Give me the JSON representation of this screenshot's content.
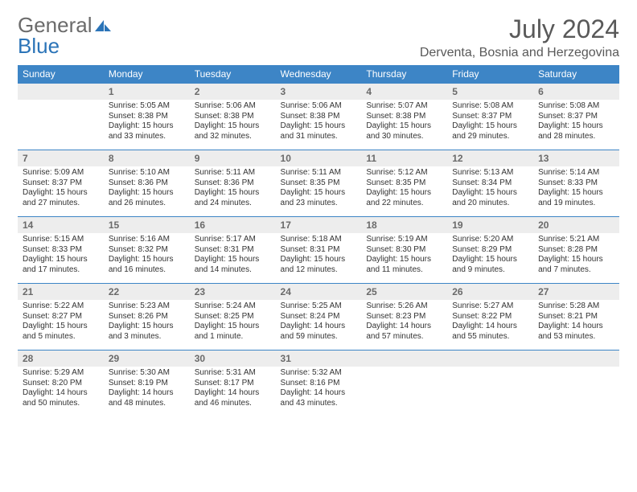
{
  "logo": {
    "word1": "General",
    "word2": "Blue"
  },
  "title": "July 2024",
  "location": "Derventa, Bosnia and Herzegovina",
  "colors": {
    "header_bg": "#3d85c6",
    "header_text": "#ffffff",
    "daynum_bg": "#ededed",
    "daynum_text": "#6a6a6a",
    "border": "#3d85c6",
    "body_text": "#333333",
    "title_text": "#595959",
    "logo_gray": "#6b6b6b",
    "logo_blue": "#2b74b8"
  },
  "days": [
    "Sunday",
    "Monday",
    "Tuesday",
    "Wednesday",
    "Thursday",
    "Friday",
    "Saturday"
  ],
  "weeks": [
    [
      {
        "n": "",
        "l": [
          "",
          "",
          "",
          ""
        ]
      },
      {
        "n": "1",
        "l": [
          "Sunrise: 5:05 AM",
          "Sunset: 8:38 PM",
          "Daylight: 15 hours",
          "and 33 minutes."
        ]
      },
      {
        "n": "2",
        "l": [
          "Sunrise: 5:06 AM",
          "Sunset: 8:38 PM",
          "Daylight: 15 hours",
          "and 32 minutes."
        ]
      },
      {
        "n": "3",
        "l": [
          "Sunrise: 5:06 AM",
          "Sunset: 8:38 PM",
          "Daylight: 15 hours",
          "and 31 minutes."
        ]
      },
      {
        "n": "4",
        "l": [
          "Sunrise: 5:07 AM",
          "Sunset: 8:38 PM",
          "Daylight: 15 hours",
          "and 30 minutes."
        ]
      },
      {
        "n": "5",
        "l": [
          "Sunrise: 5:08 AM",
          "Sunset: 8:37 PM",
          "Daylight: 15 hours",
          "and 29 minutes."
        ]
      },
      {
        "n": "6",
        "l": [
          "Sunrise: 5:08 AM",
          "Sunset: 8:37 PM",
          "Daylight: 15 hours",
          "and 28 minutes."
        ]
      }
    ],
    [
      {
        "n": "7",
        "l": [
          "Sunrise: 5:09 AM",
          "Sunset: 8:37 PM",
          "Daylight: 15 hours",
          "and 27 minutes."
        ]
      },
      {
        "n": "8",
        "l": [
          "Sunrise: 5:10 AM",
          "Sunset: 8:36 PM",
          "Daylight: 15 hours",
          "and 26 minutes."
        ]
      },
      {
        "n": "9",
        "l": [
          "Sunrise: 5:11 AM",
          "Sunset: 8:36 PM",
          "Daylight: 15 hours",
          "and 24 minutes."
        ]
      },
      {
        "n": "10",
        "l": [
          "Sunrise: 5:11 AM",
          "Sunset: 8:35 PM",
          "Daylight: 15 hours",
          "and 23 minutes."
        ]
      },
      {
        "n": "11",
        "l": [
          "Sunrise: 5:12 AM",
          "Sunset: 8:35 PM",
          "Daylight: 15 hours",
          "and 22 minutes."
        ]
      },
      {
        "n": "12",
        "l": [
          "Sunrise: 5:13 AM",
          "Sunset: 8:34 PM",
          "Daylight: 15 hours",
          "and 20 minutes."
        ]
      },
      {
        "n": "13",
        "l": [
          "Sunrise: 5:14 AM",
          "Sunset: 8:33 PM",
          "Daylight: 15 hours",
          "and 19 minutes."
        ]
      }
    ],
    [
      {
        "n": "14",
        "l": [
          "Sunrise: 5:15 AM",
          "Sunset: 8:33 PM",
          "Daylight: 15 hours",
          "and 17 minutes."
        ]
      },
      {
        "n": "15",
        "l": [
          "Sunrise: 5:16 AM",
          "Sunset: 8:32 PM",
          "Daylight: 15 hours",
          "and 16 minutes."
        ]
      },
      {
        "n": "16",
        "l": [
          "Sunrise: 5:17 AM",
          "Sunset: 8:31 PM",
          "Daylight: 15 hours",
          "and 14 minutes."
        ]
      },
      {
        "n": "17",
        "l": [
          "Sunrise: 5:18 AM",
          "Sunset: 8:31 PM",
          "Daylight: 15 hours",
          "and 12 minutes."
        ]
      },
      {
        "n": "18",
        "l": [
          "Sunrise: 5:19 AM",
          "Sunset: 8:30 PM",
          "Daylight: 15 hours",
          "and 11 minutes."
        ]
      },
      {
        "n": "19",
        "l": [
          "Sunrise: 5:20 AM",
          "Sunset: 8:29 PM",
          "Daylight: 15 hours",
          "and 9 minutes."
        ]
      },
      {
        "n": "20",
        "l": [
          "Sunrise: 5:21 AM",
          "Sunset: 8:28 PM",
          "Daylight: 15 hours",
          "and 7 minutes."
        ]
      }
    ],
    [
      {
        "n": "21",
        "l": [
          "Sunrise: 5:22 AM",
          "Sunset: 8:27 PM",
          "Daylight: 15 hours",
          "and 5 minutes."
        ]
      },
      {
        "n": "22",
        "l": [
          "Sunrise: 5:23 AM",
          "Sunset: 8:26 PM",
          "Daylight: 15 hours",
          "and 3 minutes."
        ]
      },
      {
        "n": "23",
        "l": [
          "Sunrise: 5:24 AM",
          "Sunset: 8:25 PM",
          "Daylight: 15 hours",
          "and 1 minute."
        ]
      },
      {
        "n": "24",
        "l": [
          "Sunrise: 5:25 AM",
          "Sunset: 8:24 PM",
          "Daylight: 14 hours",
          "and 59 minutes."
        ]
      },
      {
        "n": "25",
        "l": [
          "Sunrise: 5:26 AM",
          "Sunset: 8:23 PM",
          "Daylight: 14 hours",
          "and 57 minutes."
        ]
      },
      {
        "n": "26",
        "l": [
          "Sunrise: 5:27 AM",
          "Sunset: 8:22 PM",
          "Daylight: 14 hours",
          "and 55 minutes."
        ]
      },
      {
        "n": "27",
        "l": [
          "Sunrise: 5:28 AM",
          "Sunset: 8:21 PM",
          "Daylight: 14 hours",
          "and 53 minutes."
        ]
      }
    ],
    [
      {
        "n": "28",
        "l": [
          "Sunrise: 5:29 AM",
          "Sunset: 8:20 PM",
          "Daylight: 14 hours",
          "and 50 minutes."
        ]
      },
      {
        "n": "29",
        "l": [
          "Sunrise: 5:30 AM",
          "Sunset: 8:19 PM",
          "Daylight: 14 hours",
          "and 48 minutes."
        ]
      },
      {
        "n": "30",
        "l": [
          "Sunrise: 5:31 AM",
          "Sunset: 8:17 PM",
          "Daylight: 14 hours",
          "and 46 minutes."
        ]
      },
      {
        "n": "31",
        "l": [
          "Sunrise: 5:32 AM",
          "Sunset: 8:16 PM",
          "Daylight: 14 hours",
          "and 43 minutes."
        ]
      },
      {
        "n": "",
        "l": [
          "",
          "",
          "",
          ""
        ]
      },
      {
        "n": "",
        "l": [
          "",
          "",
          "",
          ""
        ]
      },
      {
        "n": "",
        "l": [
          "",
          "",
          "",
          ""
        ]
      }
    ]
  ]
}
